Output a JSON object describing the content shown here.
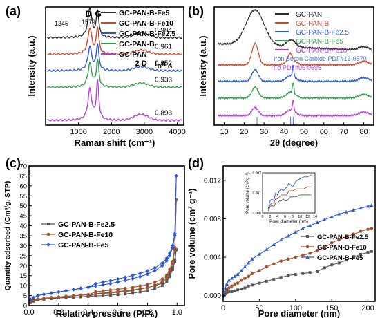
{
  "figure": {
    "colors": {
      "black": "#2b2b2b",
      "red": "#c8472b",
      "blue": "#2a57d3",
      "green": "#2f9a4c",
      "purple": "#b23fd6",
      "gray": "#555555",
      "brown": "#a0522d",
      "lightblue": "#3f6fe0"
    }
  },
  "chart_data": [
    {
      "panel": "(a)",
      "type": "line",
      "xlabel": "Raman shift (cm⁻¹)",
      "ylabel": "Intensity (a.u.)",
      "xlim": [
        0,
        4200
      ],
      "xticks": [
        1000,
        2000,
        3000,
        4000
      ],
      "yticks_shown": false,
      "legend_position": "top-right",
      "annotations": [
        "D",
        "G",
        "1345",
        "1579",
        "2 D",
        "ID/IG"
      ],
      "ratio_header": "I_D/I_G",
      "series": [
        {
          "name": "GC-PAN-B-Fe5",
          "color": "#2b2b2b",
          "ratio": "0.984",
          "offset": 0.72,
          "peakD": 0.25,
          "peakG": 0.22,
          "twoD": 0.04
        },
        {
          "name": "GC-PAN-B-Fe10",
          "color": "#c8472b",
          "ratio": "0.961",
          "offset": 0.58,
          "peakD": 0.22,
          "peakG": 0.22,
          "twoD": 0.035
        },
        {
          "name": "GC-PAN-B-Fe2.5",
          "color": "#2a57d3",
          "ratio": "0.952",
          "offset": 0.44,
          "peakD": 0.2,
          "peakG": 0.22,
          "twoD": 0.035
        },
        {
          "name": "GC-PAN-B",
          "color": "#2f9a4c",
          "ratio": "0.933",
          "offset": 0.3,
          "peakD": 0.2,
          "peakG": 0.22,
          "twoD": 0.035
        },
        {
          "name": "GC-PAN",
          "color": "#b23fd6",
          "ratio": "0.893",
          "offset": 0.02,
          "peakD": 0.26,
          "peakG": 0.32,
          "twoD": 0.05
        }
      ]
    },
    {
      "panel": "(b)",
      "type": "line",
      "xlabel": "2θ (degree)",
      "ylabel": "Intensity (a.u.)",
      "xlim": [
        5,
        85
      ],
      "xticks": [
        10,
        20,
        30,
        40,
        50,
        60,
        70,
        80
      ],
      "yticks_shown": false,
      "legend_position": "top-right",
      "references": [
        {
          "label": "Iron Boron Carbide PDF#12-0570",
          "color": "#3f6fe0"
        },
        {
          "label": "Fe PDF#06-0696",
          "color": "#b23fd6"
        }
      ],
      "series": [
        {
          "name": "GC-PAN",
          "color": "#2b2b2b"
        },
        {
          "name": "GC-PAN-B",
          "color": "#c8472b"
        },
        {
          "name": "GC-PAN-B-Fe2.5",
          "color": "#2a57d3"
        },
        {
          "name": "GC-PAN-B-Fe5",
          "color": "#2f9a4c"
        },
        {
          "name": "GC-PAN-B-Fe10",
          "color": "#b23fd6"
        }
      ]
    },
    {
      "panel": "(c)",
      "type": "line",
      "xlabel": "Relative pressure (P/P₀)",
      "ylabel": "Quantity adsorbed (Cm³/g, STP)",
      "xlim": [
        0,
        1.05
      ],
      "ylim": [
        0,
        70
      ],
      "xticks": [
        0.0,
        0.2,
        0.4,
        0.6,
        0.8,
        1.0
      ],
      "yticks": [
        0,
        5,
        10,
        15,
        20,
        25,
        30,
        35,
        40,
        45,
        50,
        55,
        60,
        65,
        70
      ],
      "legend_position": "top-left",
      "series": [
        {
          "name": "GC-PAN-B-Fe2.5",
          "color": "#555555",
          "marker": "square",
          "x": [
            0.01,
            0.03,
            0.06,
            0.1,
            0.15,
            0.2,
            0.25,
            0.3,
            0.35,
            0.4,
            0.45,
            0.5,
            0.55,
            0.6,
            0.65,
            0.7,
            0.75,
            0.8,
            0.85,
            0.9,
            0.93,
            0.95,
            0.97,
            0.985,
            0.995
          ],
          "y": [
            1.5,
            2.2,
            2.8,
            3.2,
            3.5,
            3.8,
            4.0,
            4.2,
            4.4,
            4.6,
            4.8,
            5.0,
            5.2,
            5.5,
            5.8,
            6.2,
            6.8,
            7.5,
            8.5,
            10,
            12,
            14.5,
            18,
            22,
            28
          ]
        },
        {
          "name": "GC-PAN-B-Fe10",
          "color": "#a0522d",
          "marker": "circle",
          "x": [
            0.01,
            0.03,
            0.06,
            0.1,
            0.15,
            0.2,
            0.25,
            0.3,
            0.35,
            0.4,
            0.45,
            0.5,
            0.55,
            0.6,
            0.65,
            0.7,
            0.75,
            0.8,
            0.85,
            0.9,
            0.93,
            0.95,
            0.97,
            0.985,
            0.995
          ],
          "y": [
            2.0,
            2.7,
            3.2,
            3.6,
            4.0,
            4.3,
            4.6,
            4.9,
            5.2,
            5.4,
            5.7,
            6.0,
            6.3,
            6.6,
            7.0,
            7.5,
            8.2,
            9.0,
            10.2,
            12,
            14,
            17,
            21,
            28,
            53
          ]
        },
        {
          "name": "GC-PAN-B-Fe5",
          "color": "#2a57d3",
          "marker": "diamond",
          "x": [
            0.01,
            0.03,
            0.06,
            0.1,
            0.15,
            0.2,
            0.25,
            0.3,
            0.35,
            0.4,
            0.45,
            0.5,
            0.55,
            0.6,
            0.65,
            0.7,
            0.75,
            0.8,
            0.85,
            0.9,
            0.93,
            0.95,
            0.97,
            0.985,
            0.995
          ],
          "y": [
            3.0,
            4.0,
            5.0,
            5.6,
            6.2,
            6.8,
            7.4,
            8.0,
            8.6,
            9.2,
            9.8,
            10.4,
            11.0,
            11.8,
            12.6,
            13.5,
            14.5,
            15.8,
            17.5,
            20,
            22.5,
            25,
            29,
            35,
            65
          ]
        }
      ]
    },
    {
      "panel": "(d)",
      "type": "line",
      "xlabel": "Pore diameter (nm)",
      "ylabel": "Pore volume (cm³ g⁻¹)",
      "xlim": [
        0,
        210
      ],
      "ylim": [
        -0.0006,
        0.0135
      ],
      "xticks": [
        0,
        50,
        100,
        150,
        200
      ],
      "yticks": [
        0.0,
        0.004,
        0.008,
        0.012
      ],
      "legend_position": "right",
      "series": [
        {
          "name": "GC-PAN-B-Fe2.5",
          "color": "#555555",
          "marker": "square",
          "x": [
            1,
            3,
            5,
            8,
            12,
            16,
            20,
            25,
            30,
            35,
            40,
            50,
            60,
            70,
            80,
            90,
            100,
            110,
            120,
            130,
            140,
            150,
            160,
            170,
            180,
            190,
            200,
            205
          ],
          "y": [
            0,
            0.0002,
            0.0003,
            0.0004,
            0.0004,
            0.0005,
            0.0006,
            0.0007,
            0.0008,
            0.001,
            0.0011,
            0.0013,
            0.0015,
            0.0017,
            0.0019,
            0.0021,
            0.0022,
            0.0023,
            0.0024,
            0.0025,
            0.0029,
            0.0032,
            0.0034,
            0.0037,
            0.004,
            0.0043,
            0.0045,
            0.0046
          ]
        },
        {
          "name": "GC-PAN-B-Fe10",
          "color": "#a0522d",
          "marker": "circle",
          "x": [
            1,
            3,
            5,
            8,
            12,
            16,
            20,
            25,
            30,
            35,
            40,
            50,
            60,
            70,
            80,
            90,
            100,
            110,
            120,
            130,
            140,
            150,
            160,
            170,
            180,
            190,
            200,
            205
          ],
          "y": [
            0,
            0.0004,
            0.0006,
            0.0008,
            0.001,
            0.0012,
            0.0013,
            0.0016,
            0.0018,
            0.002,
            0.0023,
            0.0026,
            0.003,
            0.0033,
            0.0036,
            0.0038,
            0.004,
            0.0042,
            0.0044,
            0.0047,
            0.005,
            0.0055,
            0.0058,
            0.0061,
            0.0064,
            0.0067,
            0.0069,
            0.007
          ]
        },
        {
          "name": "GC-PAN-B-Fe5",
          "color": "#2a57d3",
          "marker": "triangle",
          "x": [
            1,
            3,
            5,
            8,
            12,
            16,
            20,
            25,
            30,
            35,
            40,
            50,
            60,
            70,
            80,
            90,
            100,
            110,
            120,
            130,
            140,
            150,
            160,
            170,
            180,
            190,
            200,
            205
          ],
          "y": [
            0,
            0.0008,
            0.0012,
            0.0016,
            0.0018,
            0.002,
            0.0022,
            0.0026,
            0.003,
            0.0034,
            0.0038,
            0.0043,
            0.0048,
            0.0053,
            0.0058,
            0.0062,
            0.0066,
            0.007,
            0.0073,
            0.0076,
            0.0079,
            0.0082,
            0.0085,
            0.0087,
            0.0089,
            0.0091,
            0.0093,
            0.0094
          ]
        }
      ],
      "inset": {
        "xlabel": "Pore diameter (nm)",
        "ylabel": "Pore volume (cm³ g⁻¹)",
        "xlim": [
          0,
          14
        ],
        "ylim": [
          0,
          0.002
        ],
        "xticks": [
          0,
          2,
          4,
          6,
          8,
          10,
          12,
          14
        ],
        "yticks": [
          0.0,
          0.001,
          0.002
        ],
        "series": [
          {
            "name": "GC-PAN-B-Fe2.5",
            "color": "#555555",
            "x": [
              1.5,
              2,
              2.5,
              3,
              3.5,
              4,
              4.5,
              5,
              5.5,
              6,
              6.5,
              7,
              7.5,
              8,
              9,
              10,
              11,
              12,
              13
            ],
            "y": [
              0.0001,
              0.0003,
              0.0004,
              0.0003,
              0.0005,
              0.0005,
              0.0006,
              0.0006,
              0.0007,
              0.0006,
              0.0006,
              0.0007,
              0.0008,
              0.0008,
              0.0008,
              0.0009,
              0.0009,
              0.0009,
              0.0009
            ]
          },
          {
            "name": "GC-PAN-B-Fe10",
            "color": "#a0522d",
            "x": [
              1.5,
              2,
              2.5,
              3,
              3.5,
              4,
              4.5,
              5,
              5.5,
              6,
              6.5,
              7,
              7.5,
              8,
              9,
              10,
              11,
              12,
              13
            ],
            "y": [
              0.0002,
              0.0004,
              0.0005,
              0.0005,
              0.0007,
              0.0007,
              0.0008,
              0.0009,
              0.0009,
              0.0009,
              0.0009,
              0.0011,
              0.0011,
              0.0011,
              0.0012,
              0.0012,
              0.0012,
              0.0013,
              0.0013
            ]
          },
          {
            "name": "GC-PAN-B-Fe5",
            "color": "#2a57d3",
            "x": [
              1.5,
              2,
              2.5,
              3,
              3.5,
              4,
              4.5,
              5,
              5.5,
              6,
              6.5,
              7,
              7.5,
              8,
              9,
              10,
              11,
              12,
              13
            ],
            "y": [
              0.0002,
              0.0006,
              0.0007,
              0.0006,
              0.001,
              0.0009,
              0.0011,
              0.0012,
              0.0011,
              0.0012,
              0.0013,
              0.0015,
              0.0014,
              0.0013,
              0.0016,
              0.0017,
              0.0018,
              0.0018,
              0.0019
            ]
          }
        ]
      }
    }
  ]
}
